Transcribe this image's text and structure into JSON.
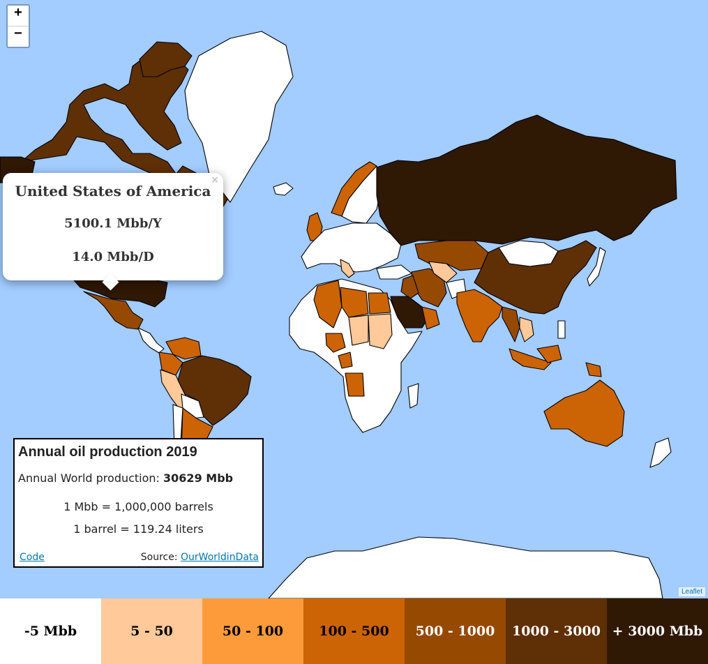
{
  "zoom": {
    "in_label": "+",
    "out_label": "−"
  },
  "popup": {
    "country": "United States of America",
    "annual": "5100.1 Mbb/Y",
    "daily": "14.0 Mbb/D",
    "close_label": "×"
  },
  "info": {
    "title": "Annual oil production 2019",
    "world_label": "Annual World production: ",
    "world_value": "30629 Mbb",
    "conv1": "1 Mbb = 1,000,000 barrels",
    "conv2": "1 barrel = 119.24 liters",
    "code_link": "Code",
    "source_label": "Source: ",
    "source_link": "OurWorldinData"
  },
  "attribution": "Leaflet",
  "colors": {
    "ocean": "#a3ccff",
    "none": "#ffffff",
    "c1": "#ffc99a",
    "c2": "#fd9b3b",
    "c3": "#cc6304",
    "c4": "#964900",
    "c5": "#5f2f05",
    "c6": "#2f1804"
  },
  "legend": [
    {
      "label": "-5 Mbb",
      "bg": "#ffffff",
      "fg": "#000000"
    },
    {
      "label": "5 - 50",
      "bg": "#ffc99a",
      "fg": "#000000"
    },
    {
      "label": "50 - 100",
      "bg": "#fd9b3b",
      "fg": "#000000"
    },
    {
      "label": "100 - 500",
      "bg": "#cc6304",
      "fg": "#000000"
    },
    {
      "label": "500 - 1000",
      "bg": "#964900",
      "fg": "#ffffff"
    },
    {
      "label": "1000 - 3000",
      "bg": "#5f2f05",
      "fg": "#ffffff"
    },
    {
      "label": "+ 3000 Mbb",
      "bg": "#2f1804",
      "fg": "#ffffff"
    }
  ]
}
